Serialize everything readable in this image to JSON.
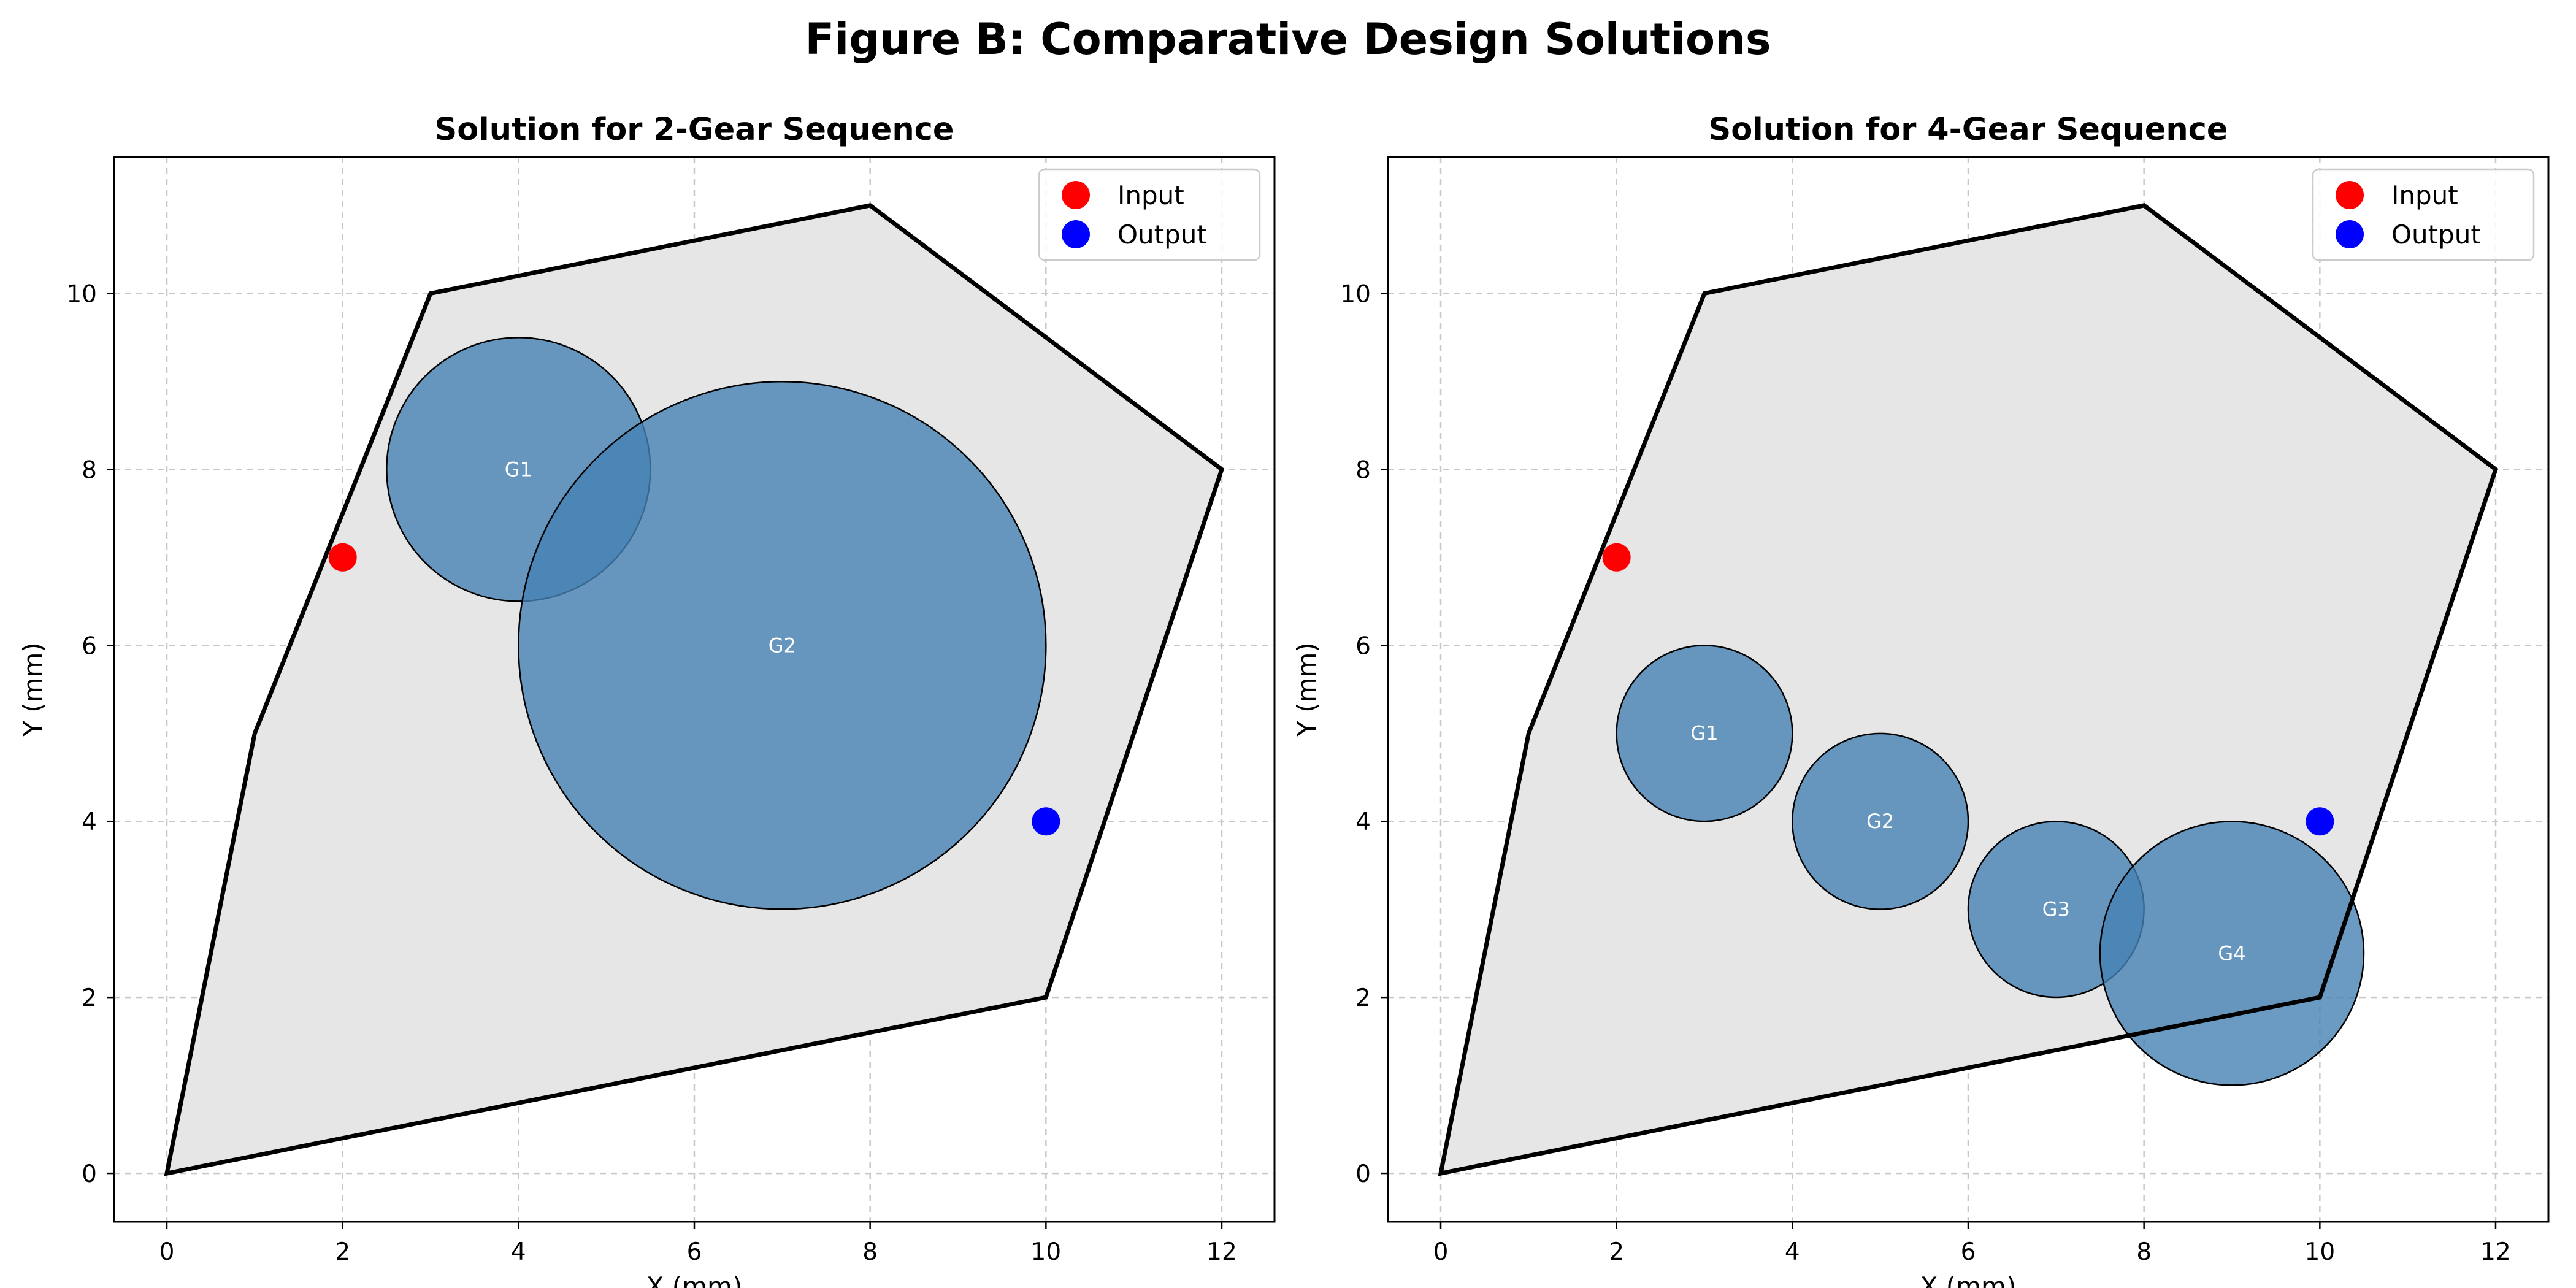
{
  "figure_title": "Figure B: Comparative Design Solutions",
  "colors": {
    "region_fill": "#e6e6e6",
    "region_edge": "#000000",
    "gear_fill": "#4682b4",
    "input": "#ff0000",
    "output": "#0000ff",
    "grid": "#c8c8c8"
  },
  "chart_data": [
    {
      "type": "scatter",
      "title": "Solution for 2-Gear Sequence",
      "xlabel": "X (mm)",
      "ylabel": "Y (mm)",
      "xlim": [
        -0.6,
        12.6
      ],
      "ylim": [
        -0.55,
        11.55
      ],
      "xticks": [
        0,
        2,
        4,
        6,
        8,
        10,
        12
      ],
      "yticks": [
        0,
        2,
        4,
        6,
        8,
        10
      ],
      "grid": true,
      "legend_position": "top-right",
      "region": [
        [
          0,
          0
        ],
        [
          1,
          5
        ],
        [
          3,
          10
        ],
        [
          8,
          11
        ],
        [
          12,
          8
        ],
        [
          10,
          2
        ]
      ],
      "gears": [
        {
          "label": "G1",
          "x": 4,
          "y": 8,
          "r": 1.5
        },
        {
          "label": "G2",
          "x": 7,
          "y": 6,
          "r": 3
        }
      ],
      "points": [
        {
          "name": "Input",
          "x": 2,
          "y": 7
        },
        {
          "name": "Output",
          "x": 10,
          "y": 4
        }
      ]
    },
    {
      "type": "scatter",
      "title": "Solution for 4-Gear Sequence",
      "xlabel": "X (mm)",
      "ylabel": "Y (mm)",
      "xlim": [
        -0.6,
        12.6
      ],
      "ylim": [
        -0.55,
        11.55
      ],
      "xticks": [
        0,
        2,
        4,
        6,
        8,
        10,
        12
      ],
      "yticks": [
        0,
        2,
        4,
        6,
        8,
        10
      ],
      "grid": true,
      "legend_position": "top-right",
      "region": [
        [
          0,
          0
        ],
        [
          1,
          5
        ],
        [
          3,
          10
        ],
        [
          8,
          11
        ],
        [
          12,
          8
        ],
        [
          10,
          2
        ]
      ],
      "gears": [
        {
          "label": "G1",
          "x": 3,
          "y": 5,
          "r": 1
        },
        {
          "label": "G2",
          "x": 5,
          "y": 4,
          "r": 1
        },
        {
          "label": "G3",
          "x": 7,
          "y": 3,
          "r": 1
        },
        {
          "label": "G4",
          "x": 9,
          "y": 2.5,
          "r": 1.5
        }
      ],
      "points": [
        {
          "name": "Input",
          "x": 2,
          "y": 7
        },
        {
          "name": "Output",
          "x": 10,
          "y": 4
        }
      ]
    }
  ]
}
